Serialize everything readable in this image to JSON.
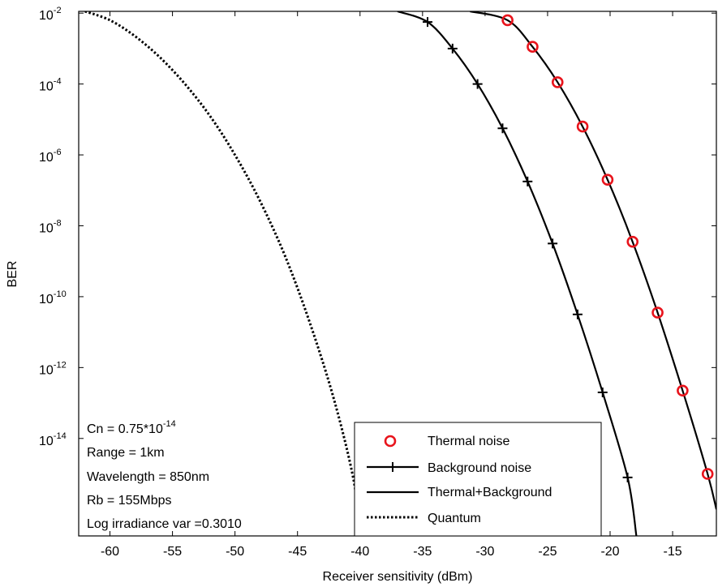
{
  "chart_data": {
    "type": "line",
    "xlabel": "Receiver sensitivity (dBm)",
    "ylabel": "BER",
    "xlim": [
      -62.5,
      -11.5
    ],
    "ylim_log10": [
      -16.75,
      -1.95
    ],
    "y_scale": "log",
    "grid": false,
    "legend_position": "bottom-right",
    "x_ticks": [
      {
        "value": -60,
        "label": "-60"
      },
      {
        "value": -55,
        "label": "-55"
      },
      {
        "value": -50,
        "label": "-50"
      },
      {
        "value": -45,
        "label": "-45"
      },
      {
        "value": -40,
        "label": "-40"
      },
      {
        "value": -35,
        "label": "-35"
      },
      {
        "value": -30,
        "label": "-30"
      },
      {
        "value": -25,
        "label": "-25"
      },
      {
        "value": -20,
        "label": "-20"
      },
      {
        "value": -15,
        "label": "-15"
      }
    ],
    "y_ticks": [
      {
        "value": -2,
        "base": "10",
        "exp": "-2"
      },
      {
        "value": -4,
        "base": "10",
        "exp": "-4"
      },
      {
        "value": -6,
        "base": "10",
        "exp": "-6"
      },
      {
        "value": -8,
        "base": "10",
        "exp": "-8"
      },
      {
        "value": -10,
        "base": "10",
        "exp": "-10"
      },
      {
        "value": -12,
        "base": "10",
        "exp": "-12"
      },
      {
        "value": -14,
        "base": "10",
        "exp": "-14"
      }
    ],
    "annotation": {
      "cn_prefix": "Cn = 0.75*10",
      "cn_exp": "-14",
      "lines": [
        "Range = 1km",
        "Wavelength = 850nm",
        "Rb = 155Mbps",
        "Log irradiance var =0.3010"
      ]
    },
    "series": [
      {
        "name": "Thermal noise",
        "style": "markers-o",
        "color": "#e8141c",
        "points": [
          [
            -28.2,
            -2.2
          ],
          [
            -26.2,
            -2.95
          ],
          [
            -24.2,
            -3.95
          ],
          [
            -22.2,
            -5.2
          ],
          [
            -20.2,
            -6.7
          ],
          [
            -18.2,
            -8.45
          ],
          [
            -16.2,
            -10.45
          ],
          [
            -14.2,
            -12.65
          ],
          [
            -12.2,
            -15.0
          ]
        ]
      },
      {
        "name": "Background noise",
        "style": "line-plus",
        "color": "#000000",
        "points": [
          [
            -34.6,
            -2.25
          ],
          [
            -32.6,
            -3.0
          ],
          [
            -30.6,
            -4.0
          ],
          [
            -28.6,
            -5.25
          ],
          [
            -26.6,
            -6.75
          ],
          [
            -24.6,
            -8.5
          ],
          [
            -22.6,
            -10.5
          ],
          [
            -20.6,
            -12.7
          ],
          [
            -18.6,
            -15.1
          ]
        ]
      },
      {
        "name": "Thermal+Background",
        "style": "solid",
        "color": "#000000",
        "points": [
          [
            -31.2,
            -1.95
          ],
          [
            -28.2,
            -2.2
          ],
          [
            -26.2,
            -2.95
          ],
          [
            -24.2,
            -3.95
          ],
          [
            -22.2,
            -5.2
          ],
          [
            -20.2,
            -6.7
          ],
          [
            -18.2,
            -8.45
          ],
          [
            -16.2,
            -10.45
          ],
          [
            -14.2,
            -12.65
          ],
          [
            -12.2,
            -15.0
          ],
          [
            -11.5,
            -16.0
          ]
        ]
      },
      {
        "name": "Background curve",
        "style": "solid",
        "color": "#000000",
        "legend": false,
        "points": [
          [
            -37.0,
            -1.95
          ],
          [
            -34.6,
            -2.25
          ],
          [
            -32.6,
            -3.0
          ],
          [
            -30.6,
            -4.0
          ],
          [
            -28.6,
            -5.25
          ],
          [
            -26.6,
            -6.75
          ],
          [
            -24.6,
            -8.5
          ],
          [
            -22.6,
            -10.5
          ],
          [
            -20.6,
            -12.7
          ],
          [
            -18.6,
            -15.1
          ],
          [
            -17.9,
            -16.75
          ]
        ]
      },
      {
        "name": "Quantum",
        "style": "dotted",
        "color": "#000000",
        "points": [
          [
            -62.0,
            -1.95
          ],
          [
            -60.0,
            -2.2
          ],
          [
            -58.0,
            -2.65
          ],
          [
            -56.0,
            -3.25
          ],
          [
            -54.0,
            -4.0
          ],
          [
            -52.0,
            -4.9
          ],
          [
            -50.0,
            -6.0
          ],
          [
            -48.0,
            -7.3
          ],
          [
            -46.0,
            -8.85
          ],
          [
            -44.0,
            -10.75
          ],
          [
            -42.0,
            -13.0
          ],
          [
            -40.5,
            -15.2
          ],
          [
            -40.0,
            -16.75
          ]
        ]
      }
    ],
    "legend": [
      {
        "label": "Thermal noise",
        "style": "markers-o"
      },
      {
        "label": "Background noise",
        "style": "line-plus"
      },
      {
        "label": "Thermal+Background",
        "style": "solid"
      },
      {
        "label": "Quantum",
        "style": "dotted"
      }
    ]
  }
}
